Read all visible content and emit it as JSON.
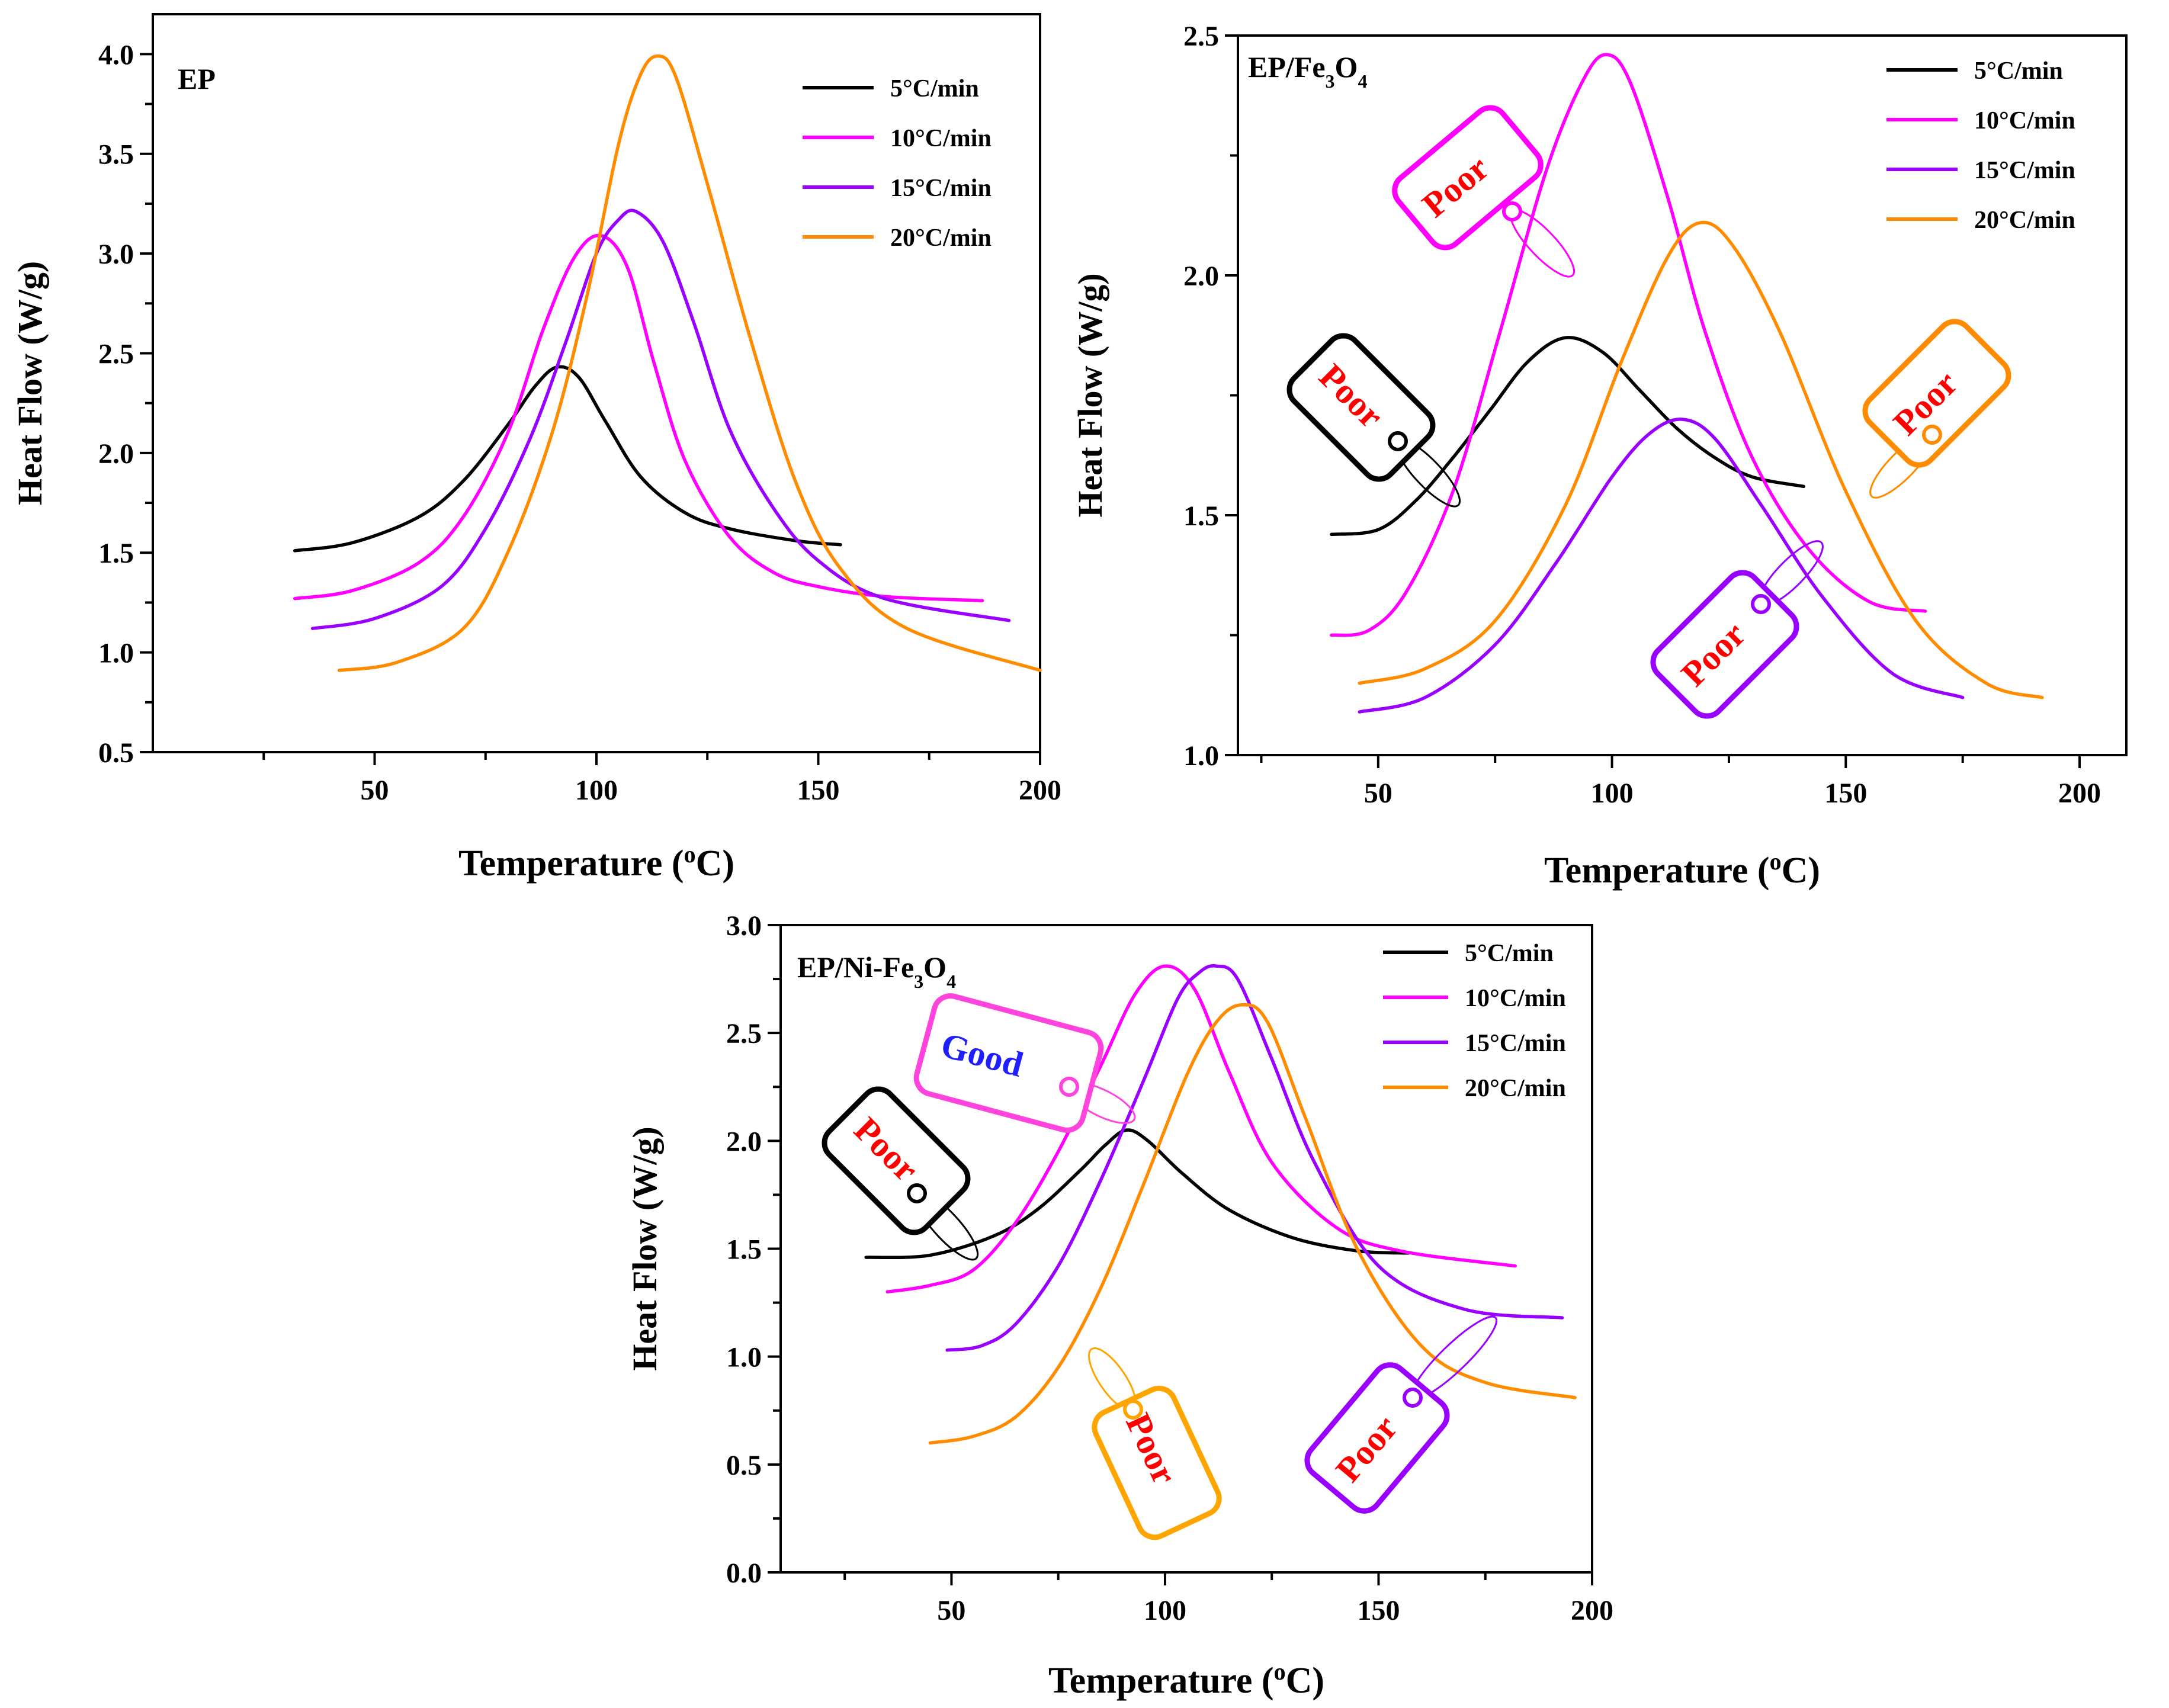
{
  "chart_data": [
    {
      "type": "line",
      "panel_label": "EP",
      "xlabel": "Temperature",
      "xlabel_sup": "o",
      "xlabel_unit": "C",
      "ylabel": "Heat Flow (W/g)",
      "xlim": [
        0,
        200
      ],
      "ylim": [
        0.5,
        4.2
      ],
      "xticks": [
        "50",
        "100",
        "150",
        "200"
      ],
      "yticks": [
        "0.5",
        "1.0",
        "1.5",
        "2.0",
        "2.5",
        "3.0",
        "3.5",
        "4.0"
      ],
      "series": [
        {
          "name": "5°C/min",
          "rate": "5",
          "color": "#000000",
          "x": [
            32,
            45,
            60,
            70,
            80,
            86,
            91,
            96,
            102,
            110,
            120,
            130,
            145,
            155
          ],
          "y": [
            1.51,
            1.55,
            1.68,
            1.86,
            2.14,
            2.33,
            2.43,
            2.38,
            2.16,
            1.88,
            1.7,
            1.62,
            1.56,
            1.54
          ]
        },
        {
          "name": "10°C/min",
          "rate": "10",
          "color": "#ff00ff",
          "x": [
            32,
            45,
            60,
            70,
            80,
            88,
            95,
            101,
            107,
            113,
            120,
            130,
            140,
            150,
            165,
            187
          ],
          "y": [
            1.27,
            1.31,
            1.45,
            1.68,
            2.1,
            2.62,
            2.98,
            3.09,
            2.93,
            2.45,
            1.96,
            1.58,
            1.4,
            1.33,
            1.28,
            1.26
          ]
        },
        {
          "name": "15°C/min",
          "rate": "15",
          "color": "#9900ff",
          "x": [
            36,
            50,
            65,
            75,
            85,
            93,
            100,
            105,
            109,
            115,
            122,
            130,
            140,
            150,
            165,
            193
          ],
          "y": [
            1.12,
            1.17,
            1.33,
            1.62,
            2.07,
            2.55,
            3.0,
            3.17,
            3.21,
            3.06,
            2.65,
            2.12,
            1.72,
            1.46,
            1.27,
            1.16
          ]
        },
        {
          "name": "20°C/min",
          "rate": "20",
          "color": "#ff8c00",
          "x": [
            42,
            55,
            70,
            80,
            90,
            98,
            105,
            110,
            114,
            118,
            125,
            135,
            145,
            155,
            170,
            200
          ],
          "y": [
            0.91,
            0.95,
            1.12,
            1.5,
            2.1,
            2.8,
            3.55,
            3.9,
            3.99,
            3.88,
            3.35,
            2.55,
            1.85,
            1.42,
            1.12,
            0.91
          ]
        }
      ],
      "tags": []
    },
    {
      "type": "line",
      "panel_label": "EP/Fe",
      "panel_label_sub1": "3",
      "panel_label_mid": "O",
      "panel_label_sub2": "4",
      "xlabel": "Temperature",
      "xlabel_sup": "o",
      "xlabel_unit": "C",
      "ylabel": "Heat Flow (W/g)",
      "xlim": [
        20,
        210
      ],
      "ylim": [
        1.0,
        2.5
      ],
      "xticks": [
        "50",
        "100",
        "150",
        "200"
      ],
      "yticks": [
        "1.0",
        "1.5",
        "2.0",
        "2.5"
      ],
      "series": [
        {
          "name": "5°C/min",
          "rate": "5",
          "color": "#000000",
          "x": [
            40,
            50,
            58,
            66,
            74,
            82,
            90,
            98,
            106,
            114,
            122,
            130,
            141
          ],
          "y": [
            1.46,
            1.47,
            1.53,
            1.62,
            1.72,
            1.82,
            1.87,
            1.84,
            1.76,
            1.68,
            1.62,
            1.58,
            1.56
          ]
        },
        {
          "name": "10°C/min",
          "rate": "10",
          "color": "#ff00ff",
          "x": [
            40,
            48,
            56,
            66,
            76,
            86,
            94,
            99,
            104,
            112,
            120,
            130,
            142,
            155,
            167
          ],
          "y": [
            1.25,
            1.26,
            1.34,
            1.55,
            1.88,
            2.22,
            2.41,
            2.46,
            2.4,
            2.16,
            1.88,
            1.62,
            1.43,
            1.32,
            1.3
          ]
        },
        {
          "name": "15°C/min",
          "rate": "15",
          "color": "#9900ff",
          "x": [
            46,
            60,
            75,
            88,
            100,
            108,
            115,
            122,
            132,
            145,
            160,
            175
          ],
          "y": [
            1.09,
            1.12,
            1.23,
            1.4,
            1.58,
            1.67,
            1.7,
            1.66,
            1.52,
            1.33,
            1.17,
            1.12
          ]
        },
        {
          "name": "20°C/min",
          "rate": "20",
          "color": "#ff8c00",
          "x": [
            46,
            60,
            75,
            90,
            102,
            112,
            119,
            126,
            136,
            150,
            165,
            180,
            192
          ],
          "y": [
            1.15,
            1.18,
            1.28,
            1.52,
            1.82,
            2.04,
            2.11,
            2.06,
            1.88,
            1.55,
            1.28,
            1.15,
            1.12
          ]
        }
      ],
      "tags": [
        {
          "text": "Poor",
          "color": "#ff00ff",
          "series": "10°C/min"
        },
        {
          "text": "Poor",
          "color": "#000000",
          "series": "5°C/min"
        },
        {
          "text": "Poor",
          "color": "#ff8c00",
          "series": "20°C/min"
        },
        {
          "text": "Poor",
          "color": "#9900ff",
          "series": "15°C/min"
        }
      ]
    },
    {
      "type": "line",
      "panel_label": "EP/Ni-Fe",
      "panel_label_sub1": "3",
      "panel_label_mid": "O",
      "panel_label_sub2": "4",
      "xlabel": "Temperature",
      "xlabel_sup": "o",
      "xlabel_unit": "C",
      "ylabel": "Heat Flow (W/g)",
      "xlim": [
        10,
        200
      ],
      "ylim": [
        0.0,
        3.0
      ],
      "xticks": [
        "50",
        "100",
        "150",
        "200"
      ],
      "yticks": [
        "0.0",
        "0.5",
        "1.0",
        "1.5",
        "2.0",
        "2.5",
        "3.0"
      ],
      "series": [
        {
          "name": "5°C/min",
          "rate": "5",
          "color": "#000000",
          "x": [
            30,
            45,
            60,
            70,
            80,
            86,
            91,
            96,
            104,
            115,
            130,
            145,
            157
          ],
          "y": [
            1.46,
            1.47,
            1.56,
            1.68,
            1.86,
            1.98,
            2.05,
            2.0,
            1.85,
            1.68,
            1.55,
            1.49,
            1.48
          ]
        },
        {
          "name": "10°C/min",
          "rate": "10",
          "color": "#ff00ff",
          "x": [
            35,
            45,
            55,
            65,
            75,
            85,
            93,
            100,
            107,
            115,
            125,
            140,
            155,
            182
          ],
          "y": [
            1.3,
            1.33,
            1.4,
            1.62,
            1.95,
            2.35,
            2.68,
            2.81,
            2.7,
            2.32,
            1.9,
            1.6,
            1.49,
            1.42
          ]
        },
        {
          "name": "15°C/min",
          "rate": "15",
          "color": "#9900ff",
          "x": [
            49,
            57,
            65,
            75,
            85,
            95,
            103,
            108,
            112,
            117,
            125,
            135,
            150,
            170,
            193
          ],
          "y": [
            1.03,
            1.05,
            1.15,
            1.42,
            1.82,
            2.28,
            2.66,
            2.78,
            2.81,
            2.75,
            2.38,
            1.9,
            1.42,
            1.22,
            1.18
          ]
        },
        {
          "name": "20°C/min",
          "rate": "20",
          "color": "#ff8c00",
          "x": [
            45,
            55,
            65,
            75,
            85,
            95,
            105,
            112,
            118,
            124,
            133,
            145,
            160,
            175,
            196
          ],
          "y": [
            0.6,
            0.63,
            0.72,
            0.95,
            1.32,
            1.8,
            2.3,
            2.55,
            2.63,
            2.55,
            2.1,
            1.5,
            1.05,
            0.88,
            0.81
          ]
        }
      ],
      "tags": [
        {
          "text": "Good",
          "color": "#ff44dd",
          "text_color": "#2020ff",
          "series": "10°C/min"
        },
        {
          "text": "Poor",
          "color": "#000000",
          "series": "5°C/min"
        },
        {
          "text": "Poor",
          "color": "#ffa500",
          "series": "20°C/min"
        },
        {
          "text": "Poor",
          "color": "#9900ff",
          "series": "15°C/min"
        }
      ]
    }
  ]
}
